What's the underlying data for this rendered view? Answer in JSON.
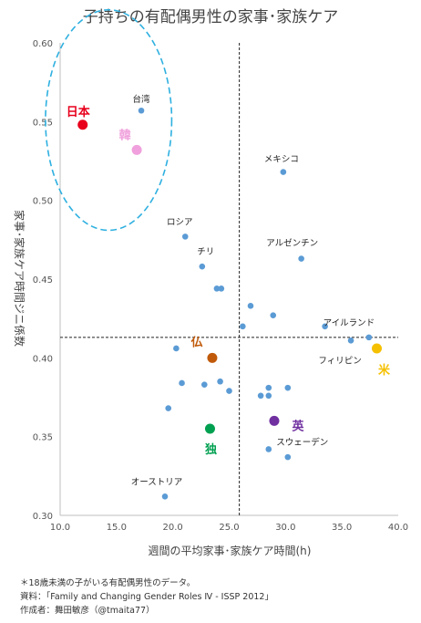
{
  "chart_data": {
    "type": "scatter",
    "title": "子持ちの有配偶男性の家事･家族ケア",
    "xlabel": "週間の平均家事･家族ケア時間(h)",
    "ylabel": "家事･家族ケア時間ジニ係数",
    "xlim": [
      10.0,
      40.0
    ],
    "ylim": [
      0.3,
      0.6
    ],
    "x_ticks": [
      "10.0",
      "15.0",
      "20.0",
      "25.0",
      "30.0",
      "35.0",
      "40.0"
    ],
    "y_ticks": [
      "0.30",
      "0.35",
      "0.40",
      "0.45",
      "0.50",
      "0.55",
      "0.60"
    ],
    "grid": false,
    "reference_lines": {
      "x": 25.9,
      "y": 0.413
    },
    "default_color": "#5b9bd5",
    "points": [
      {
        "x": 17.2,
        "y": 0.557
      },
      {
        "x": 29.8,
        "y": 0.518
      },
      {
        "x": 21.1,
        "y": 0.477
      },
      {
        "x": 31.4,
        "y": 0.463
      },
      {
        "x": 22.6,
        "y": 0.458
      },
      {
        "x": 23.9,
        "y": 0.444
      },
      {
        "x": 24.3,
        "y": 0.444
      },
      {
        "x": 26.9,
        "y": 0.433
      },
      {
        "x": 28.9,
        "y": 0.427
      },
      {
        "x": 26.2,
        "y": 0.42
      },
      {
        "x": 33.5,
        "y": 0.42
      },
      {
        "x": 37.4,
        "y": 0.413
      },
      {
        "x": 35.8,
        "y": 0.411
      },
      {
        "x": 20.3,
        "y": 0.406
      },
      {
        "x": 20.8,
        "y": 0.384
      },
      {
        "x": 22.8,
        "y": 0.383
      },
      {
        "x": 24.2,
        "y": 0.385
      },
      {
        "x": 25.0,
        "y": 0.379
      },
      {
        "x": 28.5,
        "y": 0.381
      },
      {
        "x": 30.2,
        "y": 0.381
      },
      {
        "x": 27.8,
        "y": 0.376
      },
      {
        "x": 28.5,
        "y": 0.376
      },
      {
        "x": 19.6,
        "y": 0.368
      },
      {
        "x": 28.5,
        "y": 0.342
      },
      {
        "x": 30.2,
        "y": 0.337
      },
      {
        "x": 19.3,
        "y": 0.312
      }
    ],
    "highlighted_points": [
      {
        "name": "日本",
        "x": 12.0,
        "y": 0.548,
        "color": "#e8001c"
      },
      {
        "name": "韓",
        "x": 16.8,
        "y": 0.532,
        "color": "#f0a0dc"
      },
      {
        "name": "仏",
        "x": 23.5,
        "y": 0.4,
        "color": "#c05a0a"
      },
      {
        "name": "米",
        "x": 38.1,
        "y": 0.406,
        "color": "#f5c000"
      },
      {
        "name": "英",
        "x": 29.0,
        "y": 0.36,
        "color": "#7030a0"
      },
      {
        "name": "独",
        "x": 23.3,
        "y": 0.355,
        "color": "#00a050"
      }
    ],
    "annotations": [
      {
        "text": "台湾",
        "x": 17.2,
        "y": 0.557
      },
      {
        "text": "メキシコ",
        "x": 29.8,
        "y": 0.518
      },
      {
        "text": "ロシア",
        "x": 21.1,
        "y": 0.477
      },
      {
        "text": "チリ",
        "x": 22.6,
        "y": 0.458
      },
      {
        "text": "アルゼンチン",
        "x": 31.4,
        "y": 0.463
      },
      {
        "text": "アイルランド",
        "x": 37.4,
        "y": 0.413
      },
      {
        "text": "フィリピン",
        "x": 35.8,
        "y": 0.411
      },
      {
        "text": "スウェーデン",
        "x": 30.2,
        "y": 0.337
      },
      {
        "text": "オーストリア",
        "x": 19.3,
        "y": 0.312
      }
    ],
    "ellipse_highlight": {
      "cx": 14.3,
      "cy": 0.551,
      "rx": 5.6,
      "ry": 0.07,
      "color": "#2eb0e0"
    }
  },
  "notes": [
    "＊18歳未満の子がいる有配偶男性のデータ。",
    "資料：「Family and Changing Gender Roles Ⅳ - ISSP 2012」",
    "作成者：舞田敏彦（@tmaita77）"
  ]
}
